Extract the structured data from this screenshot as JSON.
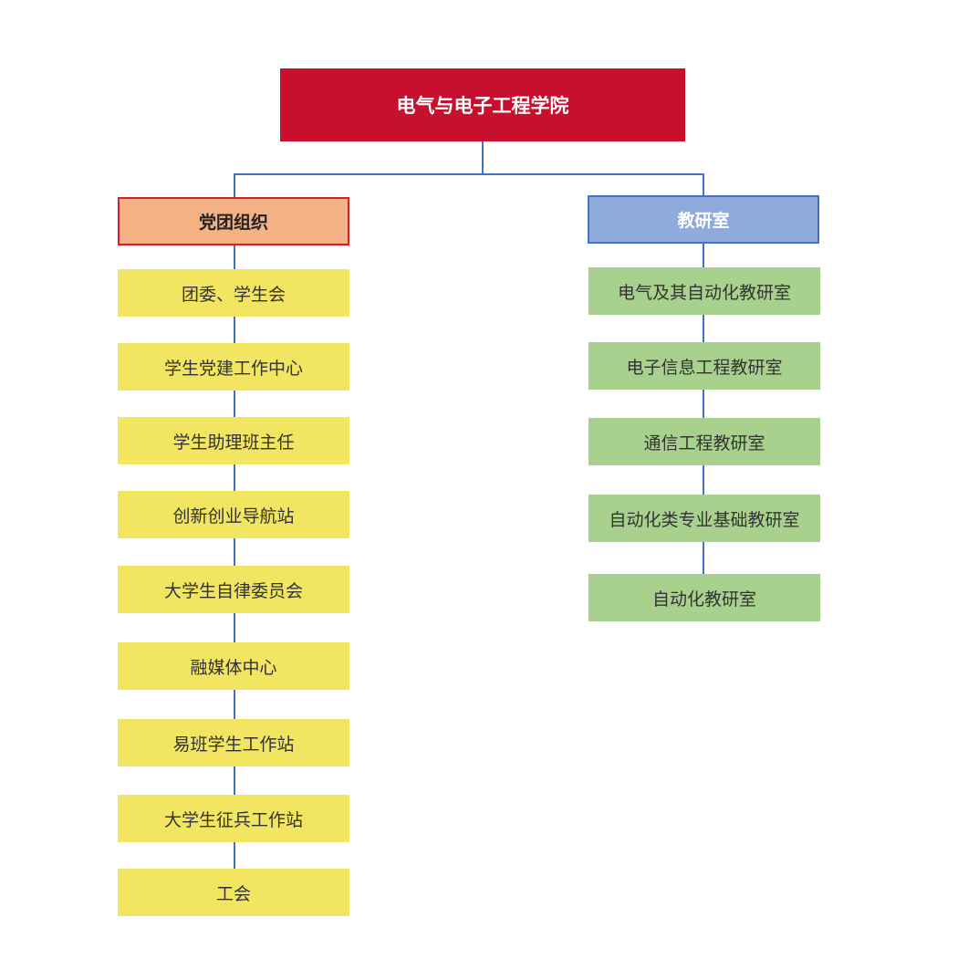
{
  "root": {
    "label": "电气与电子工程学院",
    "color": "#c8102e"
  },
  "branches": [
    {
      "label": "党团组织",
      "color": "#f4b183",
      "children": [
        "团委、学生会",
        "学生党建工作中心",
        "学生助理班主任",
        "创新创业导航站",
        "大学生自律委员会",
        "融媒体中心",
        "易班学生工作站",
        "大学生征兵工作站",
        "工会"
      ],
      "child_color": "#f2e561"
    },
    {
      "label": "教研室",
      "color": "#8faadc",
      "children": [
        "电气及其自动化教研室",
        "电子信息工程教研室",
        "通信工程教研室",
        "自动化类专业基础教研室",
        "自动化教研室"
      ],
      "child_color": "#a9d18e"
    }
  ],
  "connector_color": "#4472c4"
}
